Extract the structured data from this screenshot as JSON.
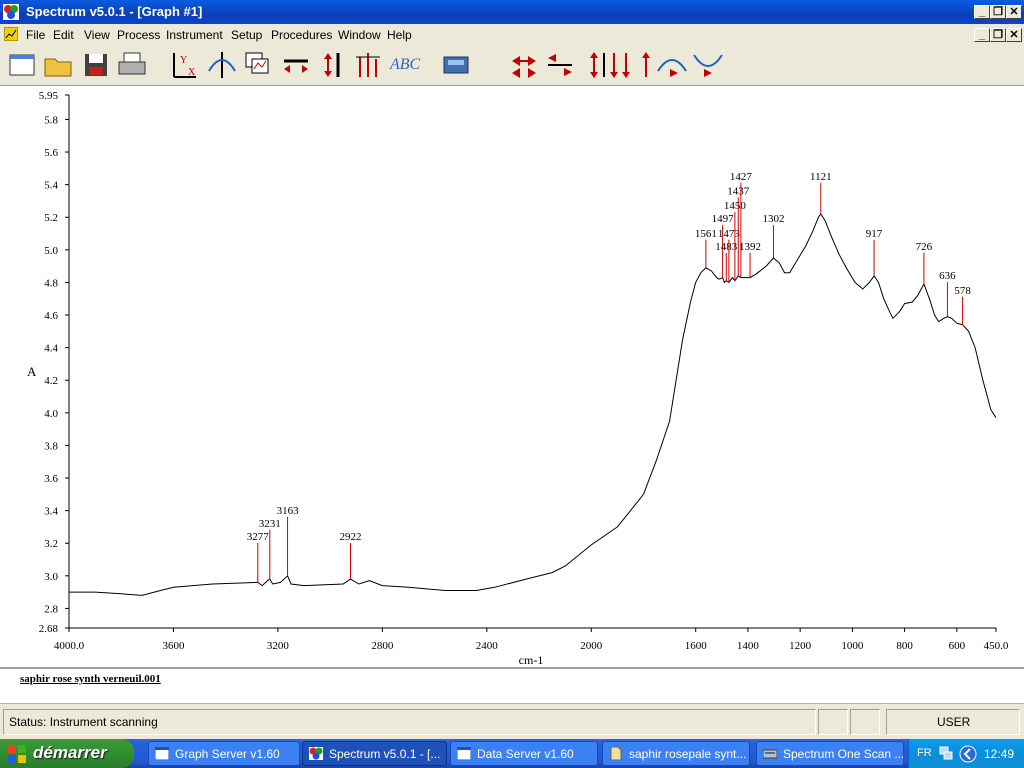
{
  "window": {
    "title": "Spectrum v5.0.1 - [Graph #1]",
    "min_glyph": "_",
    "restore_glyph": "❐",
    "close_glyph": "✕"
  },
  "menu": {
    "items": [
      "File",
      "Edit",
      "View",
      "Process",
      "Instrument",
      "Setup",
      "Procedures",
      "Window",
      "Help"
    ]
  },
  "toolbar": {
    "icons": [
      "new-icon",
      "open-folder-icon",
      "save-icon",
      "print-icon",
      "axis-xy-icon",
      "cursor-cross-icon",
      "overlay-icon",
      "expand-horizontal-icon",
      "expand-vertical-icon",
      "peak-label-icon",
      "text-label-icon",
      "scanner-icon",
      "scroll-horizontal-icon",
      "stretch-horizontal-icon",
      "stretch-vertical-icon",
      "shift-down-icon",
      "shift-up-icon",
      "peak-up-icon",
      "peak-down-icon"
    ],
    "abc_label": "ABC"
  },
  "graph": {
    "ylabel": "A",
    "xlabel": "cm-1"
  },
  "chart_data": {
    "type": "line",
    "xlabel": "cm-1",
    "ylabel": "A",
    "xlim": [
      4000.0,
      450.0
    ],
    "ylim": [
      2.68,
      5.95
    ],
    "x_ticks": [
      "4000.0",
      "3600",
      "3200",
      "2800",
      "2400",
      "2000",
      "1600",
      "1400",
      "1200",
      "1000",
      "800",
      "600",
      "450.0"
    ],
    "x_tick_values": [
      4000,
      3600,
      3200,
      2800,
      2400,
      2000,
      1600,
      1400,
      1200,
      1000,
      800,
      600,
      450
    ],
    "y_ticks": [
      "2.68",
      "2.8",
      "3.0",
      "3.2",
      "3.4",
      "3.6",
      "3.8",
      "4.0",
      "4.2",
      "4.4",
      "4.6",
      "4.8",
      "5.0",
      "5.2",
      "5.4",
      "5.6",
      "5.8",
      "5.95"
    ],
    "y_tick_values": [
      2.68,
      2.8,
      3.0,
      3.2,
      3.4,
      3.6,
      3.8,
      4.0,
      4.2,
      4.4,
      4.6,
      4.8,
      5.0,
      5.2,
      5.4,
      5.6,
      5.8,
      5.95
    ],
    "grid": false,
    "series": [
      {
        "color": "#000000",
        "points": [
          [
            4000,
            2.9
          ],
          [
            3900,
            2.9
          ],
          [
            3800,
            2.89
          ],
          [
            3720,
            2.88
          ],
          [
            3650,
            2.91
          ],
          [
            3600,
            2.93
          ],
          [
            3450,
            2.95
          ],
          [
            3280,
            2.96
          ],
          [
            3277,
            2.96
          ],
          [
            3260,
            2.94
          ],
          [
            3240,
            2.97
          ],
          [
            3231,
            2.98
          ],
          [
            3220,
            2.95
          ],
          [
            3190,
            2.96
          ],
          [
            3163,
            3.0
          ],
          [
            3150,
            2.95
          ],
          [
            3100,
            2.94
          ],
          [
            2950,
            2.95
          ],
          [
            2922,
            2.98
          ],
          [
            2890,
            2.95
          ],
          [
            2850,
            2.97
          ],
          [
            2800,
            2.94
          ],
          [
            2700,
            2.93
          ],
          [
            2560,
            2.91
          ],
          [
            2440,
            2.91
          ],
          [
            2370,
            2.93
          ],
          [
            2250,
            2.98
          ],
          [
            2150,
            3.02
          ],
          [
            2100,
            3.06
          ],
          [
            2000,
            3.19
          ],
          [
            1900,
            3.3
          ],
          [
            1800,
            3.5
          ],
          [
            1750,
            3.71
          ],
          [
            1700,
            3.95
          ],
          [
            1680,
            4.15
          ],
          [
            1650,
            4.45
          ],
          [
            1620,
            4.68
          ],
          [
            1600,
            4.8
          ],
          [
            1580,
            4.86
          ],
          [
            1561,
            4.89
          ],
          [
            1540,
            4.87
          ],
          [
            1520,
            4.83
          ],
          [
            1510,
            4.82
          ],
          [
            1497,
            4.83
          ],
          [
            1490,
            4.8
          ],
          [
            1483,
            4.81
          ],
          [
            1473,
            4.8
          ],
          [
            1460,
            4.83
          ],
          [
            1450,
            4.81
          ],
          [
            1437,
            4.84
          ],
          [
            1427,
            4.83
          ],
          [
            1410,
            4.83
          ],
          [
            1392,
            4.83
          ],
          [
            1370,
            4.85
          ],
          [
            1330,
            4.9
          ],
          [
            1302,
            4.95
          ],
          [
            1280,
            4.92
          ],
          [
            1260,
            4.86
          ],
          [
            1240,
            4.86
          ],
          [
            1210,
            4.94
          ],
          [
            1180,
            5.02
          ],
          [
            1150,
            5.12
          ],
          [
            1130,
            5.2
          ],
          [
            1121,
            5.22
          ],
          [
            1105,
            5.18
          ],
          [
            1080,
            5.08
          ],
          [
            1050,
            4.97
          ],
          [
            1020,
            4.88
          ],
          [
            990,
            4.8
          ],
          [
            960,
            4.76
          ],
          [
            935,
            4.8
          ],
          [
            917,
            4.84
          ],
          [
            900,
            4.8
          ],
          [
            880,
            4.7
          ],
          [
            860,
            4.63
          ],
          [
            845,
            4.58
          ],
          [
            820,
            4.62
          ],
          [
            800,
            4.67
          ],
          [
            770,
            4.68
          ],
          [
            750,
            4.72
          ],
          [
            726,
            4.79
          ],
          [
            705,
            4.7
          ],
          [
            685,
            4.6
          ],
          [
            670,
            4.56
          ],
          [
            650,
            4.58
          ],
          [
            636,
            4.59
          ],
          [
            620,
            4.58
          ],
          [
            600,
            4.55
          ],
          [
            578,
            4.54
          ],
          [
            555,
            4.5
          ],
          [
            530,
            4.4
          ],
          [
            500,
            4.2
          ],
          [
            470,
            4.02
          ],
          [
            450,
            3.97
          ]
        ]
      }
    ],
    "peak_labels": [
      {
        "label": "3277",
        "x": 3277,
        "y": 3.22
      },
      {
        "label": "3231",
        "x": 3231,
        "y": 3.3
      },
      {
        "label": "3163",
        "x": 3163,
        "y": 3.38
      },
      {
        "label": "2922",
        "x": 2922,
        "y": 3.22
      },
      {
        "label": "1561",
        "x": 1561,
        "y": 5.08
      },
      {
        "label": "1497",
        "x": 1497,
        "y": 5.17
      },
      {
        "label": "1483",
        "x": 1483,
        "y": 5.0
      },
      {
        "label": "1473",
        "x": 1473,
        "y": 5.08
      },
      {
        "label": "1450",
        "x": 1450,
        "y": 5.25
      },
      {
        "label": "1437",
        "x": 1437,
        "y": 5.34
      },
      {
        "label": "1427",
        "x": 1427,
        "y": 5.43
      },
      {
        "label": "1392",
        "x": 1392,
        "y": 5.0
      },
      {
        "label": "1302",
        "x": 1302,
        "y": 5.17
      },
      {
        "label": "1121",
        "x": 1121,
        "y": 5.43
      },
      {
        "label": "917",
        "x": 917,
        "y": 5.08
      },
      {
        "label": "726",
        "x": 726,
        "y": 5.0
      },
      {
        "label": "636",
        "x": 636,
        "y": 4.82
      },
      {
        "label": "578",
        "x": 578,
        "y": 4.73
      }
    ],
    "peak_line_color": "#CC0000"
  },
  "file": {
    "name": "saphir rose synth verneuil.001"
  },
  "status": {
    "text": "Status: Instrument scanning",
    "user": "USER"
  },
  "taskbar": {
    "start_label": "démarrer",
    "tasks": [
      {
        "label": "Graph Server v1.60",
        "icon": "window-icon",
        "active": false
      },
      {
        "label": "Spectrum v5.0.1 - [...",
        "icon": "spectrum-app-icon",
        "active": true
      },
      {
        "label": "Data Server v1.60",
        "icon": "window-icon",
        "active": false
      },
      {
        "label": "saphir rosepale synt...",
        "icon": "file-icon",
        "active": false
      },
      {
        "label": "Spectrum One Scan ...",
        "icon": "scan-icon",
        "active": false
      }
    ],
    "language": "FR",
    "clock": "12:49"
  }
}
